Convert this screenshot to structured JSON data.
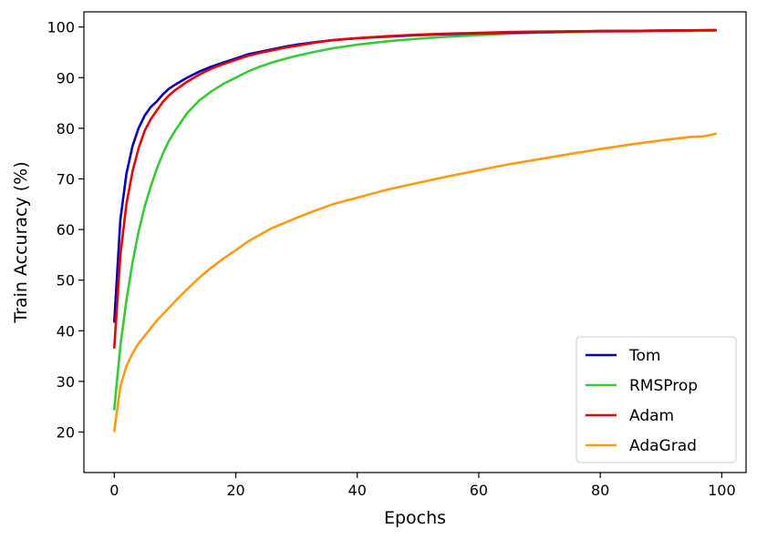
{
  "chart_data": {
    "type": "line",
    "title": "",
    "xlabel": "Epochs",
    "ylabel": "Train Accuracy (%)",
    "xlim": [
      -5,
      104
    ],
    "ylim": [
      12,
      103
    ],
    "xticks": [
      0,
      20,
      40,
      60,
      80,
      100
    ],
    "yticks": [
      20,
      30,
      40,
      50,
      60,
      70,
      80,
      90,
      100
    ],
    "grid": false,
    "legend_position": "lower-right",
    "series": [
      {
        "name": "Tom",
        "color": "#0000bf",
        "x": [
          0,
          1,
          2,
          3,
          4,
          5,
          6,
          7,
          8,
          9,
          10,
          12,
          14,
          16,
          18,
          20,
          22,
          24,
          26,
          28,
          30,
          33,
          36,
          40,
          45,
          50,
          55,
          60,
          65,
          70,
          75,
          80,
          85,
          90,
          95,
          99
        ],
        "y": [
          41.8,
          62,
          71,
          76.5,
          80,
          82.5,
          84.2,
          85.3,
          86.7,
          87.8,
          88.6,
          90,
          91.2,
          92.2,
          93,
          93.8,
          94.6,
          95.1,
          95.6,
          96.1,
          96.5,
          97,
          97.4,
          97.8,
          98.1,
          98.4,
          98.6,
          98.8,
          98.9,
          99,
          99.1,
          99.2,
          99.25,
          99.3,
          99.35,
          99.4
        ]
      },
      {
        "name": "RMSProp",
        "color": "#33cc33",
        "x": [
          0,
          1,
          2,
          3,
          4,
          5,
          6,
          7,
          8,
          9,
          10,
          12,
          14,
          16,
          18,
          20,
          22,
          24,
          26,
          28,
          30,
          33,
          36,
          40,
          45,
          50,
          55,
          60,
          65,
          70,
          75,
          80,
          85,
          90,
          95,
          99
        ],
        "y": [
          24.5,
          37,
          46,
          53.5,
          59.5,
          64.5,
          68.5,
          72,
          75,
          77.5,
          79.5,
          83,
          85.5,
          87.3,
          88.8,
          90,
          91.2,
          92.2,
          93,
          93.7,
          94.3,
          95.1,
          95.8,
          96.5,
          97.2,
          97.7,
          98.1,
          98.4,
          98.7,
          98.9,
          99,
          99.1,
          99.15,
          99.2,
          99.25,
          99.3
        ]
      },
      {
        "name": "Adam",
        "color": "#ee0000",
        "x": [
          0,
          1,
          2,
          3,
          4,
          5,
          6,
          7,
          8,
          9,
          10,
          12,
          14,
          16,
          18,
          20,
          22,
          24,
          26,
          28,
          30,
          33,
          36,
          40,
          45,
          50,
          55,
          60,
          65,
          70,
          75,
          80,
          85,
          90,
          95,
          99
        ],
        "y": [
          36.7,
          55,
          65,
          71.5,
          76,
          79.5,
          81.8,
          83.5,
          85.2,
          86.5,
          87.5,
          89.2,
          90.6,
          91.8,
          92.7,
          93.5,
          94.3,
          94.9,
          95.4,
          95.9,
          96.3,
          96.9,
          97.4,
          97.8,
          98.2,
          98.5,
          98.7,
          98.85,
          99,
          99.1,
          99.15,
          99.2,
          99.25,
          99.3,
          99.35,
          99.4
        ]
      },
      {
        "name": "AdaGrad",
        "color": "#ff9910",
        "x": [
          0,
          1,
          2,
          3,
          4,
          5,
          6,
          7,
          8,
          10,
          12,
          14,
          16,
          18,
          20,
          22,
          24,
          26,
          28,
          30,
          33,
          36,
          40,
          45,
          50,
          55,
          60,
          65,
          70,
          75,
          80,
          85,
          90,
          95,
          97,
          99
        ],
        "y": [
          20.2,
          29,
          33,
          35.5,
          37.5,
          39,
          40.5,
          42,
          43.3,
          45.8,
          48.2,
          50.5,
          52.5,
          54.3,
          55.9,
          57.6,
          59,
          60.3,
          61.3,
          62.3,
          63.7,
          65,
          66.3,
          67.9,
          69.2,
          70.5,
          71.7,
          72.9,
          73.9,
          74.9,
          75.9,
          76.8,
          77.6,
          78.3,
          78.4,
          78.9
        ]
      }
    ]
  }
}
